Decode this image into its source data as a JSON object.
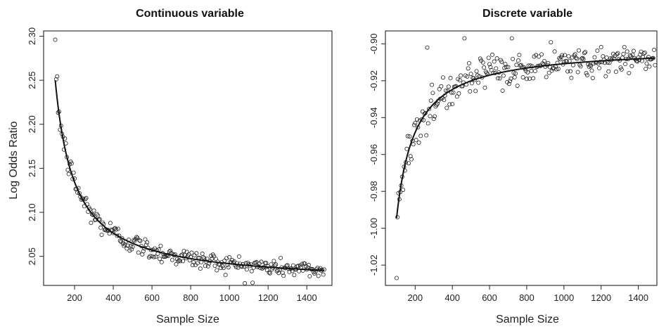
{
  "chart_data": [
    {
      "type": "scatter",
      "title": "Continuous variable",
      "xlabel": "Sample Size",
      "ylabel": "Log Odds Ratio",
      "xlim": [
        40,
        1530
      ],
      "ylim": [
        2.017,
        2.306
      ],
      "x_ticks": [
        200,
        400,
        600,
        800,
        1000,
        1200,
        1400
      ],
      "y_ticks": [
        2.05,
        2.1,
        2.15,
        2.2,
        2.25,
        2.3
      ],
      "y_tick_labels": [
        "2.05",
        "2.10",
        "2.15",
        "2.20",
        "2.25",
        "2.30"
      ],
      "x_range": [
        100,
        1490
      ],
      "x_step": 5,
      "fit_curve": {
        "form": "a + b / x",
        "a": 2.0185,
        "b": 23.15
      },
      "outliers": [
        {
          "x": 100,
          "y": 2.296
        },
        {
          "x": 105,
          "y": 2.251
        },
        {
          "x": 1120,
          "y": 2.02
        }
      ],
      "grid": false,
      "legend": "none",
      "marker": "open circle",
      "line_color": "#111111"
    },
    {
      "type": "scatter",
      "title": "Discrete variable",
      "xlabel": "Sample Size",
      "ylabel": "",
      "xlim": [
        40,
        1500
      ],
      "ylim": [
        -1.031,
        -0.893
      ],
      "x_ticks": [
        200,
        400,
        600,
        800,
        1000,
        1200,
        1400
      ],
      "y_ticks": [
        -1.02,
        -1.0,
        -0.98,
        -0.96,
        -0.94,
        -0.92,
        -0.9
      ],
      "y_tick_labels": [
        "-1.02",
        "-1.00",
        "-0.98",
        "-0.96",
        "-0.94",
        "-0.92",
        "-0.90"
      ],
      "x_range": [
        100,
        1490
      ],
      "x_step": 5,
      "fit_curve": {
        "form": "a - b / x",
        "a": -0.9015,
        "b": 9.3
      },
      "outliers": [
        {
          "x": 100,
          "y": -1.027
        },
        {
          "x": 105,
          "y": -0.994
        },
        {
          "x": 265,
          "y": -0.902
        },
        {
          "x": 465,
          "y": -0.897
        },
        {
          "x": 720,
          "y": -0.897
        }
      ],
      "grid": false,
      "legend": "none",
      "marker": "open circle",
      "line_color": "#111111"
    }
  ]
}
